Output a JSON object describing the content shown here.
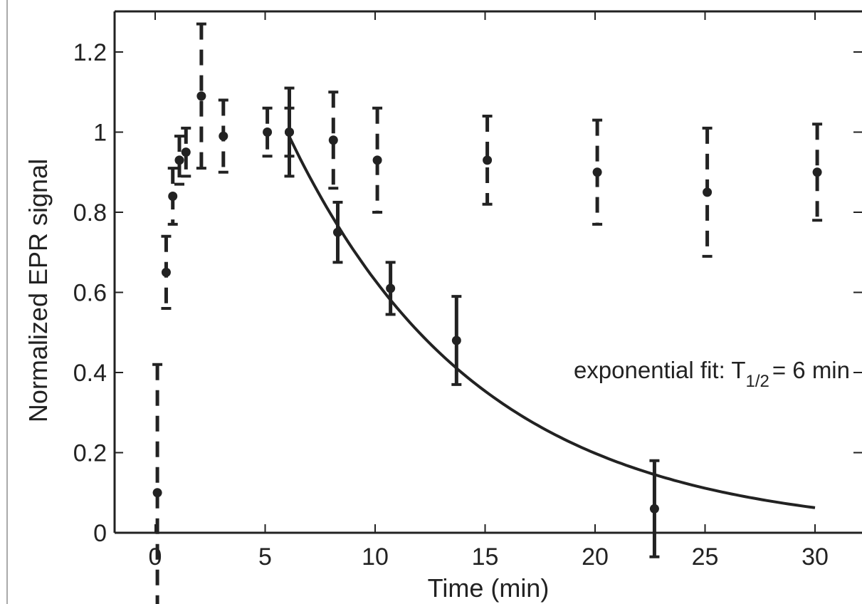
{
  "chart_data": {
    "type": "scatter",
    "xlabel": "Time (min)",
    "ylabel": "Normalized EPR signal",
    "xlim": [
      -2,
      33
    ],
    "ylim": [
      0,
      1.3
    ],
    "x_ticks": [
      0,
      5,
      10,
      15,
      20,
      25,
      30
    ],
    "x_tick_labels": [
      "0",
      "5",
      "10",
      "15",
      "20",
      "25",
      "30"
    ],
    "y_ticks": [
      0,
      0.2,
      0.4,
      0.6,
      0.8,
      1.0,
      1.2
    ],
    "y_tick_labels": [
      "0",
      "0.2",
      "0.4",
      "0.6",
      "0.8",
      "1",
      "1.2"
    ],
    "grid": false,
    "legend": "none",
    "series": [
      {
        "style": "points with dashed error bars",
        "color": "#222222",
        "points": [
          {
            "x": 0.1,
            "y": 0.1,
            "err": 0.32
          },
          {
            "x": 0.5,
            "y": 0.65,
            "err": 0.09
          },
          {
            "x": 0.8,
            "y": 0.84,
            "err": 0.07
          },
          {
            "x": 1.1,
            "y": 0.93,
            "err": 0.06
          },
          {
            "x": 1.4,
            "y": 0.95,
            "err": 0.06
          },
          {
            "x": 2.1,
            "y": 1.09,
            "err": 0.18
          },
          {
            "x": 3.1,
            "y": 0.99,
            "err": 0.09
          },
          {
            "x": 5.1,
            "y": 1.0,
            "err": 0.06
          },
          {
            "x": 6.1,
            "y": 1.0,
            "err": 0.06
          },
          {
            "x": 8.1,
            "y": 0.98,
            "err": 0.12
          },
          {
            "x": 10.1,
            "y": 0.93,
            "err": 0.13
          },
          {
            "x": 15.1,
            "y": 0.93,
            "err": 0.11
          },
          {
            "x": 20.1,
            "y": 0.9,
            "err": 0.13
          },
          {
            "x": 25.1,
            "y": 0.85,
            "err": 0.16
          },
          {
            "x": 30.1,
            "y": 0.9,
            "err": 0.12
          }
        ]
      },
      {
        "style": "points with solid error bars",
        "color": "#222222",
        "points": [
          {
            "x": 6.1,
            "y": 1.0,
            "err": 0.11
          },
          {
            "x": 8.3,
            "y": 0.75,
            "err": 0.075
          },
          {
            "x": 10.7,
            "y": 0.61,
            "err": 0.065
          },
          {
            "x": 13.7,
            "y": 0.48,
            "err": 0.11
          },
          {
            "x": 22.7,
            "y": 0.06,
            "err": 0.12
          }
        ]
      }
    ],
    "fit_curve": {
      "type": "exponential decay",
      "x0": 6,
      "x1": 30,
      "y0": 1.0,
      "half_life": 6,
      "color": "#222222"
    },
    "annotation": {
      "text": "exponential fit: T",
      "subscript": "1/2",
      "suffix": "= 6 min",
      "x": 24.5,
      "y": 0.4
    }
  }
}
